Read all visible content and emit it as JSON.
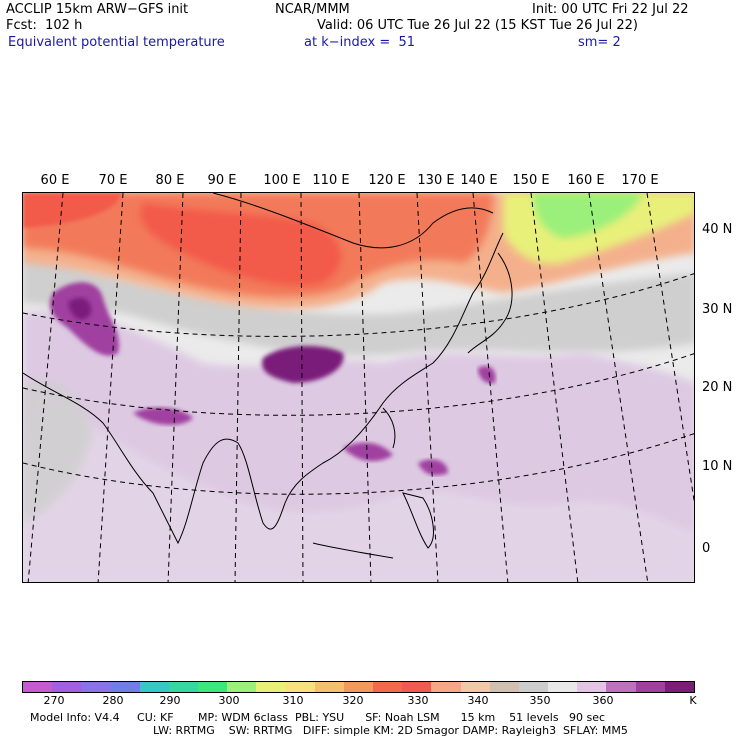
{
  "header": {
    "model": "ACCLIP 15km ARW−GFS init",
    "fcst": "Fcst:  102 h",
    "org": "NCAR/MMM",
    "init": "Init: 00 UTC Fri 22 Jul 22",
    "valid": "Valid: 06 UTC Tue 26 Jul 22 (15 KST Tue 26 Jul 22)",
    "field": "Equivalent potential temperature",
    "level": "at k−index =  51",
    "smooth": "sm= 2"
  },
  "map": {
    "lon_labels": [
      "60 E",
      "70 E",
      "80 E",
      "90 E",
      "100 E",
      "110 E",
      "120 E",
      "130 E",
      "140 E",
      "150 E",
      "160 E",
      "170 E"
    ],
    "lat_labels": [
      "40 N",
      "30 N",
      "20 N",
      "10 N",
      "0"
    ]
  },
  "colorbar": {
    "colors": [
      "#c65bd0",
      "#a65ee0",
      "#8a73e8",
      "#6f7fe6",
      "#36c7c7",
      "#34d8a0",
      "#3be87a",
      "#9af07a",
      "#e8f07a",
      "#f8e080",
      "#f4c070",
      "#f29a5e",
      "#f26a4e",
      "#f25a50",
      "#f4a884",
      "#f2c8a8",
      "#d0c0b0",
      "#cccccc",
      "#e8e8e8",
      "#e4c4e4",
      "#c070c0",
      "#a040a0",
      "#7a1e7a"
    ],
    "tick_labels": [
      "270",
      "280",
      "290",
      "300",
      "310",
      "320",
      "330",
      "340",
      "350",
      "360"
    ],
    "unit": "K"
  },
  "footer": {
    "line1": "Model Info: V4.4     CU: KF       MP: WDM 6class  PBL: YSU      SF: Noah LSM      15 km    51 levels   90 sec",
    "line2": "LW: RRTMG    SW: RRTMG   DIFF: simple KM: 2D Smagor DAMP: Rayleigh3  SFLAY: MM5"
  }
}
